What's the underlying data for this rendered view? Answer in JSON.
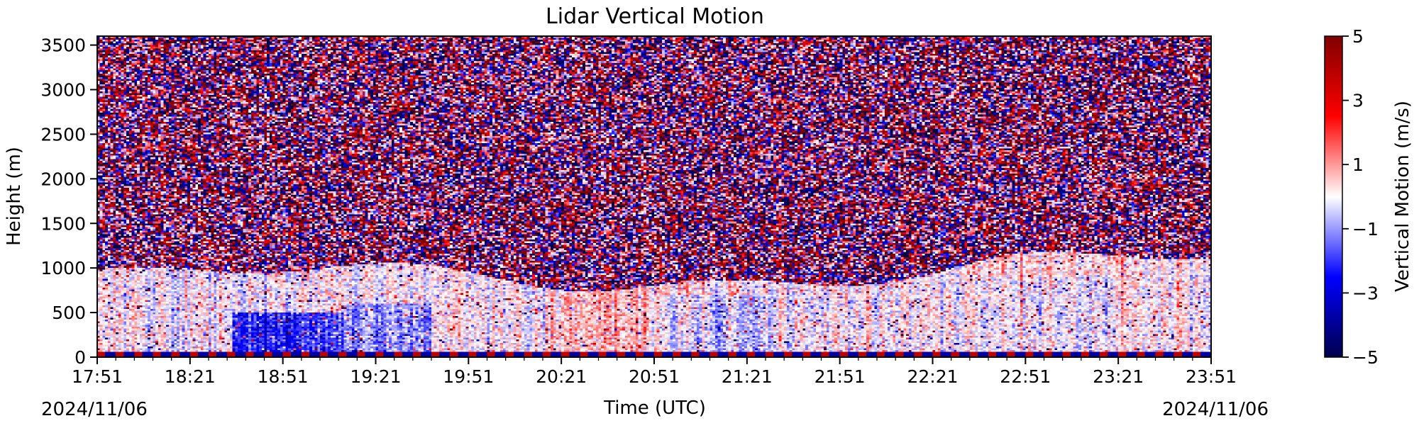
{
  "chart_data": {
    "type": "heatmap",
    "title": "Lidar Vertical Motion",
    "xlabel": "Time (UTC)",
    "ylabel": "Height (m)",
    "xlim": [
      "17:51",
      "23:51"
    ],
    "ylim": [
      0,
      3600
    ],
    "x_tick_labels": [
      "17:51",
      "18:21",
      "18:51",
      "19:21",
      "19:51",
      "20:21",
      "20:51",
      "21:21",
      "21:51",
      "22:21",
      "22:51",
      "23:21",
      "23:51"
    ],
    "y_ticks": [
      0,
      500,
      1000,
      1500,
      2000,
      2500,
      3000,
      3500
    ],
    "date_start": "2024/11/06",
    "date_end": "2024/11/06",
    "colorbar": {
      "label": "Vertical Motion (m/s)",
      "range": [
        -5,
        5
      ],
      "ticks": [
        5,
        3,
        1,
        -1,
        -3,
        -5
      ],
      "tick_labels": [
        "5",
        "3",
        "1",
        "−1",
        "−3",
        "−5"
      ],
      "colormap": "seismic"
    },
    "colors": {
      "negative_extreme": "#00004c",
      "negative": "#0000ff",
      "zero": "#ffffff",
      "positive": "#ff0000",
      "positive_extreme": "#800000"
    },
    "features": {
      "noise_above_height_m": 1100,
      "boundary_layer_top_m": [
        850,
        1150
      ],
      "near_surface_band_m": 60
    }
  }
}
